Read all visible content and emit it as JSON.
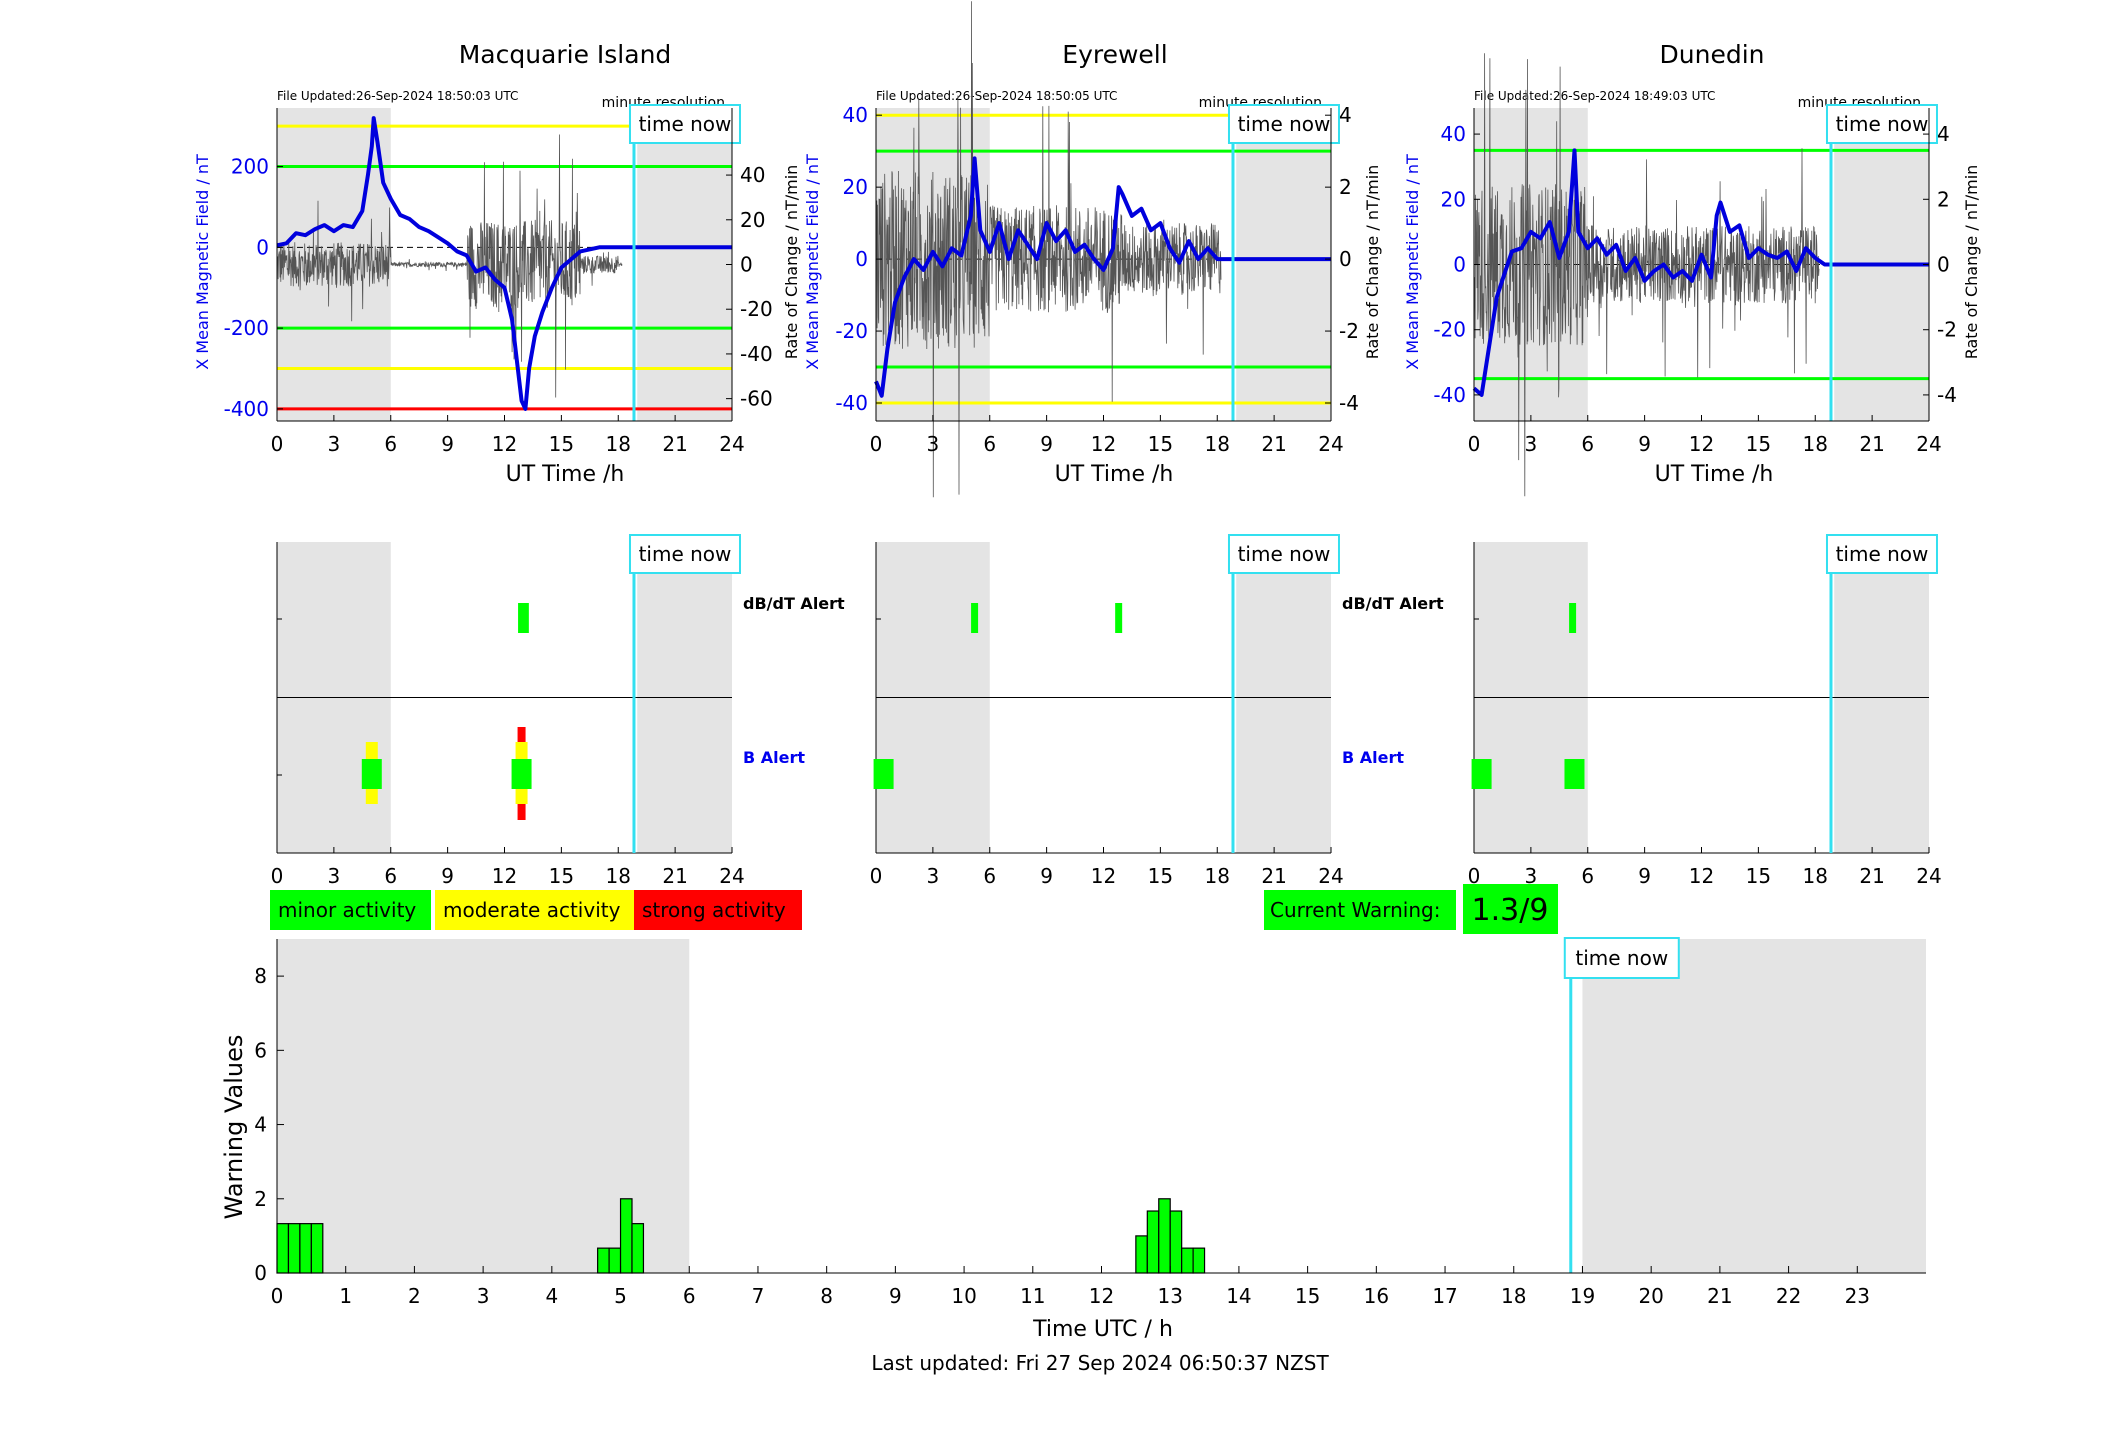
{
  "panels": [
    {
      "title": "Macquarie Island",
      "file_updated": "File Updated:26-Sep-2024 18:50:03 UTC",
      "resolution": "minute resolution",
      "time_now_label": "time now",
      "xlabel": "UT Time /h",
      "ylabel_left": "X Mean Magnetic Field / nT",
      "ylabel_right": "Rate of Change / nT/min",
      "yticks_left": [
        -400,
        -200,
        0,
        200
      ],
      "yticks_right": [
        -60,
        -40,
        -20,
        0,
        20,
        40
      ],
      "ylim": [
        -430,
        345
      ],
      "ylim_right": [
        -70,
        70
      ],
      "thresholds": [
        {
          "value": 300,
          "color": "#ffff00"
        },
        {
          "value": 200,
          "color": "#00ff00"
        },
        {
          "value": -200,
          "color": "#00ff00"
        },
        {
          "value": -300,
          "color": "#ffff00"
        },
        {
          "value": -400,
          "color": "#ff0000"
        }
      ],
      "x_field": [
        [
          0,
          5
        ],
        [
          0.5,
          10
        ],
        [
          1,
          35
        ],
        [
          1.5,
          30
        ],
        [
          2,
          45
        ],
        [
          2.5,
          55
        ],
        [
          3,
          40
        ],
        [
          3.5,
          55
        ],
        [
          4,
          50
        ],
        [
          4.5,
          90
        ],
        [
          4.8,
          180
        ],
        [
          5,
          250
        ],
        [
          5.1,
          320
        ],
        [
          5.3,
          260
        ],
        [
          5.6,
          160
        ],
        [
          6,
          120
        ],
        [
          6.5,
          80
        ],
        [
          7,
          70
        ],
        [
          7.5,
          50
        ],
        [
          8,
          40
        ],
        [
          8.5,
          25
        ],
        [
          9,
          10
        ],
        [
          9.5,
          -10
        ],
        [
          10,
          -20
        ],
        [
          10.5,
          -60
        ],
        [
          11,
          -50
        ],
        [
          11.5,
          -80
        ],
        [
          12,
          -100
        ],
        [
          12.4,
          -180
        ],
        [
          12.7,
          -300
        ],
        [
          12.9,
          -380
        ],
        [
          13.1,
          -400
        ],
        [
          13.3,
          -300
        ],
        [
          13.6,
          -220
        ],
        [
          14,
          -160
        ],
        [
          14.5,
          -100
        ],
        [
          15,
          -50
        ],
        [
          15.5,
          -30
        ],
        [
          16,
          -10
        ],
        [
          17,
          0
        ],
        [
          18,
          0
        ],
        [
          18.8,
          0
        ],
        [
          24,
          0
        ]
      ],
      "bursts": [
        [
          0,
          6,
          10
        ],
        [
          10,
          16,
          20
        ],
        [
          16,
          18,
          4
        ]
      ],
      "alerts_dbdt": [
        {
          "x": 12.9,
          "level": "minor"
        },
        {
          "x": 13.1,
          "level": "minor"
        }
      ],
      "alerts_b": [
        {
          "x": 5.0,
          "level": "moderate"
        },
        {
          "x": 12.9,
          "level": "strong"
        }
      ]
    },
    {
      "title": "Eyrewell",
      "file_updated": "File Updated:26-Sep-2024 18:50:05 UTC",
      "resolution": "minute resolution",
      "time_now_label": "time now",
      "xlabel": "UT Time /h",
      "ylabel_left": "X Mean Magnetic Field / nT",
      "ylabel_right": "Rate of Change / nT/min",
      "yticks_left": [
        -40,
        -20,
        0,
        20,
        40
      ],
      "yticks_right": [
        -4,
        -2,
        0,
        2,
        4
      ],
      "ylim": [
        -45,
        42
      ],
      "ylim_right": [
        -4.5,
        4.2
      ],
      "thresholds": [
        {
          "value": 40,
          "color": "#ffff00"
        },
        {
          "value": 30,
          "color": "#00ff00"
        },
        {
          "value": -30,
          "color": "#00ff00"
        },
        {
          "value": -40,
          "color": "#ffff00"
        }
      ],
      "x_field": [
        [
          0,
          -34
        ],
        [
          0.3,
          -38
        ],
        [
          0.6,
          -25
        ],
        [
          1,
          -12
        ],
        [
          1.5,
          -5
        ],
        [
          2,
          0
        ],
        [
          2.5,
          -3
        ],
        [
          3,
          2
        ],
        [
          3.5,
          -2
        ],
        [
          4,
          3
        ],
        [
          4.5,
          1
        ],
        [
          5,
          12
        ],
        [
          5.2,
          28
        ],
        [
          5.5,
          8
        ],
        [
          6,
          2
        ],
        [
          6.5,
          10
        ],
        [
          7,
          0
        ],
        [
          7.5,
          8
        ],
        [
          8,
          4
        ],
        [
          8.5,
          0
        ],
        [
          9,
          10
        ],
        [
          9.5,
          5
        ],
        [
          10,
          8
        ],
        [
          10.5,
          2
        ],
        [
          11,
          4
        ],
        [
          11.5,
          0
        ],
        [
          12,
          -3
        ],
        [
          12.5,
          3
        ],
        [
          12.8,
          20
        ],
        [
          13,
          18
        ],
        [
          13.5,
          12
        ],
        [
          14,
          14
        ],
        [
          14.5,
          8
        ],
        [
          15,
          10
        ],
        [
          15.5,
          3
        ],
        [
          16,
          -1
        ],
        [
          16.5,
          5
        ],
        [
          17,
          0
        ],
        [
          17.5,
          3
        ],
        [
          18,
          0
        ],
        [
          18.5,
          0
        ],
        [
          24,
          0
        ]
      ],
      "bursts": [
        [
          0,
          6,
          2.5
        ],
        [
          6,
          13,
          1.5
        ],
        [
          13,
          18,
          1
        ]
      ],
      "alerts_dbdt": [
        {
          "x": 5.2,
          "level": "minor"
        },
        {
          "x": 12.8,
          "level": "minor"
        }
      ],
      "alerts_b": [
        {
          "x": 0.4,
          "level": "minor"
        }
      ]
    },
    {
      "title": "Dunedin",
      "file_updated": "File Updated:26-Sep-2024 18:49:03 UTC",
      "resolution": "minute resolution",
      "time_now_label": "time now",
      "xlabel": "UT Time /h",
      "ylabel_left": "X Mean Magnetic Field / nT",
      "ylabel_right": "Rate of Change / nT/min",
      "yticks_left": [
        -40,
        -20,
        0,
        20,
        40
      ],
      "yticks_right": [
        -4,
        -2,
        0,
        2,
        4
      ],
      "ylim": [
        -48,
        48
      ],
      "ylim_right": [
        -4.8,
        4.8
      ],
      "thresholds": [
        {
          "value": 35,
          "color": "#00ff00"
        },
        {
          "value": -35,
          "color": "#00ff00"
        }
      ],
      "x_field": [
        [
          0,
          -38
        ],
        [
          0.4,
          -40
        ],
        [
          0.8,
          -25
        ],
        [
          1.2,
          -10
        ],
        [
          1.6,
          -3
        ],
        [
          2,
          4
        ],
        [
          2.5,
          5
        ],
        [
          3,
          10
        ],
        [
          3.5,
          8
        ],
        [
          4,
          13
        ],
        [
          4.5,
          2
        ],
        [
          5,
          10
        ],
        [
          5.3,
          35
        ],
        [
          5.5,
          10
        ],
        [
          6,
          5
        ],
        [
          6.5,
          8
        ],
        [
          7,
          3
        ],
        [
          7.5,
          6
        ],
        [
          8,
          -2
        ],
        [
          8.5,
          2
        ],
        [
          9,
          -5
        ],
        [
          9.5,
          -2
        ],
        [
          10,
          0
        ],
        [
          10.5,
          -4
        ],
        [
          11,
          -2
        ],
        [
          11.5,
          -5
        ],
        [
          12,
          3
        ],
        [
          12.5,
          -4
        ],
        [
          12.8,
          15
        ],
        [
          13,
          19
        ],
        [
          13.5,
          10
        ],
        [
          14,
          12
        ],
        [
          14.5,
          2
        ],
        [
          15,
          5
        ],
        [
          15.5,
          3
        ],
        [
          16,
          2
        ],
        [
          16.5,
          4
        ],
        [
          17,
          -2
        ],
        [
          17.5,
          5
        ],
        [
          18,
          2
        ],
        [
          18.5,
          0
        ],
        [
          24,
          0
        ]
      ],
      "bursts": [
        [
          0,
          6,
          2.5
        ],
        [
          6,
          12,
          1.2
        ],
        [
          12,
          18,
          1.2
        ]
      ],
      "alerts_dbdt": [
        {
          "x": 5.2,
          "level": "minor"
        }
      ],
      "alerts_b": [
        {
          "x": 0.4,
          "level": "minor"
        },
        {
          "x": 5.3,
          "level": "minor"
        }
      ]
    }
  ],
  "x_ticks": [
    0,
    3,
    6,
    9,
    12,
    15,
    18,
    21,
    24
  ],
  "night_shading": [
    [
      0,
      6
    ],
    [
      19,
      24
    ]
  ],
  "time_now_hour": 18.83,
  "alert_labels": {
    "dbdt": "dB/dT Alert",
    "b": "B Alert"
  },
  "legend": {
    "minor": {
      "label": "minor activity",
      "color": "#00ff00"
    },
    "moderate": {
      "label": "moderate activity",
      "color": "#ffff00"
    },
    "strong": {
      "label": "strong activity",
      "color": "#ff0000"
    }
  },
  "current_warning": {
    "label": "Current Warning:",
    "value": "1.3/9"
  },
  "chart_data": [
    {
      "type": "bar",
      "title": "",
      "xlabel": "Time UTC / h",
      "ylabel": "Warning Values",
      "xlim": [
        0,
        24
      ],
      "ylim": [
        0,
        9
      ],
      "x_ticks": [
        0,
        1,
        2,
        3,
        4,
        5,
        6,
        7,
        8,
        9,
        10,
        11,
        12,
        13,
        14,
        15,
        16,
        17,
        18,
        19,
        20,
        21,
        22,
        23
      ],
      "y_ticks": [
        0,
        2,
        4,
        6,
        8
      ],
      "bar_width_h": 0.1667,
      "bars": [
        {
          "x": 0.0,
          "value": 1.33
        },
        {
          "x": 0.1667,
          "value": 1.33
        },
        {
          "x": 0.3333,
          "value": 1.33
        },
        {
          "x": 0.5,
          "value": 1.33
        },
        {
          "x": 4.6667,
          "value": 0.67
        },
        {
          "x": 4.8333,
          "value": 0.67
        },
        {
          "x": 5.0,
          "value": 2.0
        },
        {
          "x": 5.1667,
          "value": 1.33
        },
        {
          "x": 12.5,
          "value": 1.0
        },
        {
          "x": 12.6667,
          "value": 1.67
        },
        {
          "x": 12.8333,
          "value": 2.0
        },
        {
          "x": 13.0,
          "value": 1.67
        },
        {
          "x": 13.1667,
          "value": 0.67
        },
        {
          "x": 13.3333,
          "value": 0.67
        }
      ],
      "shading": [
        [
          0,
          6
        ],
        [
          19,
          24
        ]
      ],
      "time_now": 18.83,
      "time_now_label": "time now",
      "bar_color": "#00ff00"
    }
  ],
  "footer": "Last updated: Fri 27 Sep 2024 06:50:37 NZST"
}
